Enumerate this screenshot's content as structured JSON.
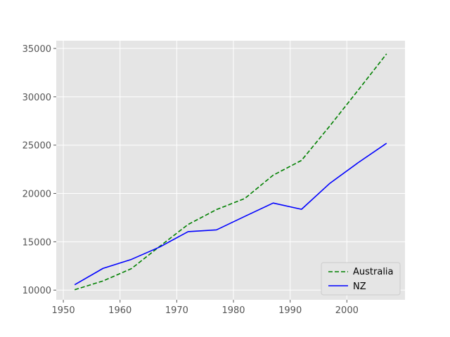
{
  "chart_data": {
    "type": "line",
    "title": "",
    "xlabel": "",
    "ylabel": "",
    "xlim": [
      1948.75,
      2010.25
    ],
    "ylim": [
      9000,
      35800
    ],
    "grid": true,
    "legend_position": "lower-right",
    "x_ticks": [
      1950,
      1960,
      1970,
      1980,
      1990,
      2000
    ],
    "y_ticks": [
      10000,
      15000,
      20000,
      25000,
      30000,
      35000
    ],
    "x": [
      1952,
      1957,
      1962,
      1967,
      1972,
      1977,
      1982,
      1987,
      1992,
      1997,
      2002,
      2007
    ],
    "series": [
      {
        "name": "Australia",
        "color": "#008000",
        "style": "dashed",
        "values": [
          10040,
          10950,
          12220,
          14530,
          16790,
          18330,
          19480,
          21890,
          23420,
          26990,
          30690,
          34440
        ]
      },
      {
        "name": "NZ",
        "color": "#0000ff",
        "style": "solid",
        "values": [
          10560,
          12250,
          13180,
          14460,
          16050,
          16230,
          17630,
          19010,
          18360,
          21050,
          23190,
          25190
        ]
      }
    ]
  },
  "colors": {
    "plot_background": "#e5e5e5",
    "grid": "#ffffff",
    "legend_border": "#cccccc",
    "tick_mark": "#555555"
  }
}
